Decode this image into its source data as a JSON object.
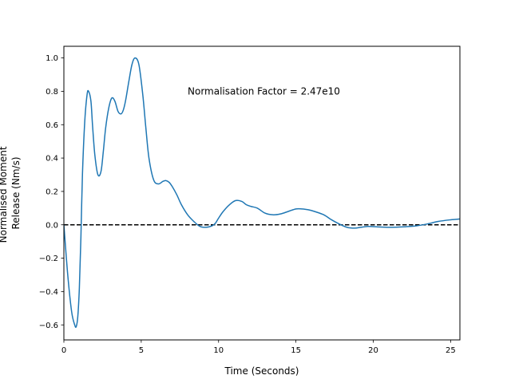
{
  "chart_data": {
    "type": "line",
    "title": "",
    "xlabel": "Time (Seconds)",
    "ylabel_lines": [
      "Normalised Moment",
      "Release (Nm/s)"
    ],
    "xlim": [
      0,
      25.6
    ],
    "ylim": [
      -0.69,
      1.07
    ],
    "xticks": [
      0,
      5,
      10,
      15,
      20,
      25
    ],
    "yticks": [
      -0.6,
      -0.4,
      -0.2,
      0.0,
      0.2,
      0.4,
      0.6,
      0.8,
      1.0
    ],
    "xtick_labels": [
      "0",
      "5",
      "10",
      "15",
      "20",
      "25"
    ],
    "ytick_labels": [
      "−0.6",
      "−0.4",
      "−0.2",
      "0.0",
      "0.2",
      "0.4",
      "0.6",
      "0.8",
      "1.0"
    ],
    "grid": false,
    "annotation": {
      "text": "Normalisation Factor = 2.47e10",
      "x": 8.0,
      "y": 0.8
    },
    "reference_line": {
      "y": 0.0,
      "style": "dashed",
      "color": "#000000"
    },
    "series": [
      {
        "color": "#1f77b4",
        "x": [
          0.0,
          0.25,
          0.5,
          0.7,
          0.8,
          0.9,
          1.0,
          1.1,
          1.2,
          1.35,
          1.5,
          1.6,
          1.75,
          1.85,
          2.0,
          2.2,
          2.4,
          2.55,
          2.7,
          2.9,
          3.1,
          3.3,
          3.5,
          3.7,
          3.85,
          4.0,
          4.2,
          4.4,
          4.6,
          4.85,
          5.1,
          5.3,
          5.5,
          5.8,
          6.1,
          6.4,
          6.6,
          6.8,
          7.0,
          7.3,
          7.6,
          8.0,
          8.4,
          8.8,
          9.2,
          9.6,
          9.8,
          10.0,
          10.3,
          10.7,
          11.1,
          11.5,
          11.8,
          12.1,
          12.5,
          13.0,
          13.5,
          14.0,
          14.5,
          15.0,
          15.4,
          15.8,
          16.2,
          16.8,
          17.3,
          17.8,
          18.3,
          18.8,
          19.2,
          19.6,
          20.2,
          21.0,
          22.0,
          22.8,
          23.5,
          24.2,
          25.0,
          25.6
        ],
        "y": [
          0.0,
          -0.3,
          -0.52,
          -0.6,
          -0.61,
          -0.55,
          -0.38,
          -0.08,
          0.3,
          0.62,
          0.78,
          0.8,
          0.74,
          0.6,
          0.42,
          0.3,
          0.32,
          0.44,
          0.58,
          0.7,
          0.76,
          0.74,
          0.68,
          0.665,
          0.69,
          0.75,
          0.86,
          0.96,
          1.0,
          0.96,
          0.78,
          0.58,
          0.4,
          0.27,
          0.245,
          0.26,
          0.265,
          0.255,
          0.23,
          0.18,
          0.12,
          0.06,
          0.02,
          -0.01,
          -0.015,
          -0.005,
          0.01,
          0.04,
          0.08,
          0.12,
          0.145,
          0.14,
          0.12,
          0.11,
          0.1,
          0.07,
          0.06,
          0.065,
          0.08,
          0.095,
          0.095,
          0.09,
          0.08,
          0.06,
          0.03,
          0.005,
          -0.015,
          -0.02,
          -0.015,
          -0.01,
          -0.012,
          -0.015,
          -0.012,
          -0.006,
          0.005,
          0.02,
          0.03,
          0.035
        ]
      }
    ]
  }
}
